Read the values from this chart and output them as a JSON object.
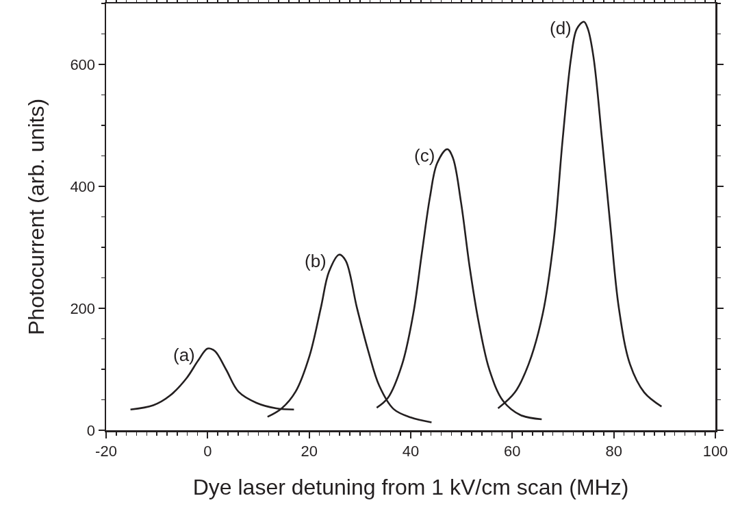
{
  "chart_data": {
    "type": "line",
    "xlabel": "Dye laser detuning from 1 kV/cm scan (MHz)",
    "ylabel": "Photocurrent (arb. units)",
    "xlim": [
      -20,
      100
    ],
    "ylim": [
      0,
      700
    ],
    "xticks": [
      -20,
      0,
      20,
      40,
      60,
      80,
      100
    ],
    "yticks": [
      0,
      200,
      400,
      600
    ],
    "grid": false,
    "marker": "none",
    "line_style": "solid",
    "series": [
      {
        "name": "(a)",
        "color": "#231f20",
        "x": [
          -15.2,
          -10.7,
          -7.4,
          -4.1,
          -1.9,
          0,
          1.4,
          3.6,
          6.1,
          9.6,
          13.5,
          17
        ],
        "values": [
          34,
          41,
          57,
          86,
          114,
          134,
          130,
          100,
          63,
          45,
          36,
          34
        ]
      },
      {
        "name": "(b)",
        "color": "#231f20",
        "x": [
          11.8,
          14.6,
          17.3,
          20.1,
          22.3,
          23.9,
          25.9,
          27.2,
          29.4,
          31.7,
          33.8,
          36.6,
          40,
          44.1
        ],
        "values": [
          22,
          36,
          63,
          123,
          201,
          260,
          288,
          278,
          201,
          128,
          73,
          35,
          21,
          13
        ]
      },
      {
        "name": "(c)",
        "color": "#231f20",
        "x": [
          33.3,
          35.5,
          38.3,
          40.5,
          42.2,
          43.8,
          45.2,
          47.2,
          48.3,
          49.9,
          51.6,
          53.3,
          55.5,
          58.2,
          61.6,
          65.8
        ],
        "values": [
          37,
          53,
          108,
          191,
          291,
          383,
          438,
          461,
          447,
          374,
          268,
          181,
          99,
          48,
          25,
          18
        ]
      },
      {
        "name": "(d)",
        "color": "#231f20",
        "x": [
          57.2,
          60.5,
          63.2,
          66,
          68.2,
          69.9,
          71.6,
          72.7,
          74.1,
          74.9,
          76,
          77.7,
          79.3,
          81,
          83.2,
          86,
          89.4
        ],
        "values": [
          36,
          62,
          108,
          191,
          314,
          475,
          612,
          658,
          670,
          658,
          612,
          475,
          337,
          200,
          108,
          62,
          39
        ]
      }
    ]
  }
}
